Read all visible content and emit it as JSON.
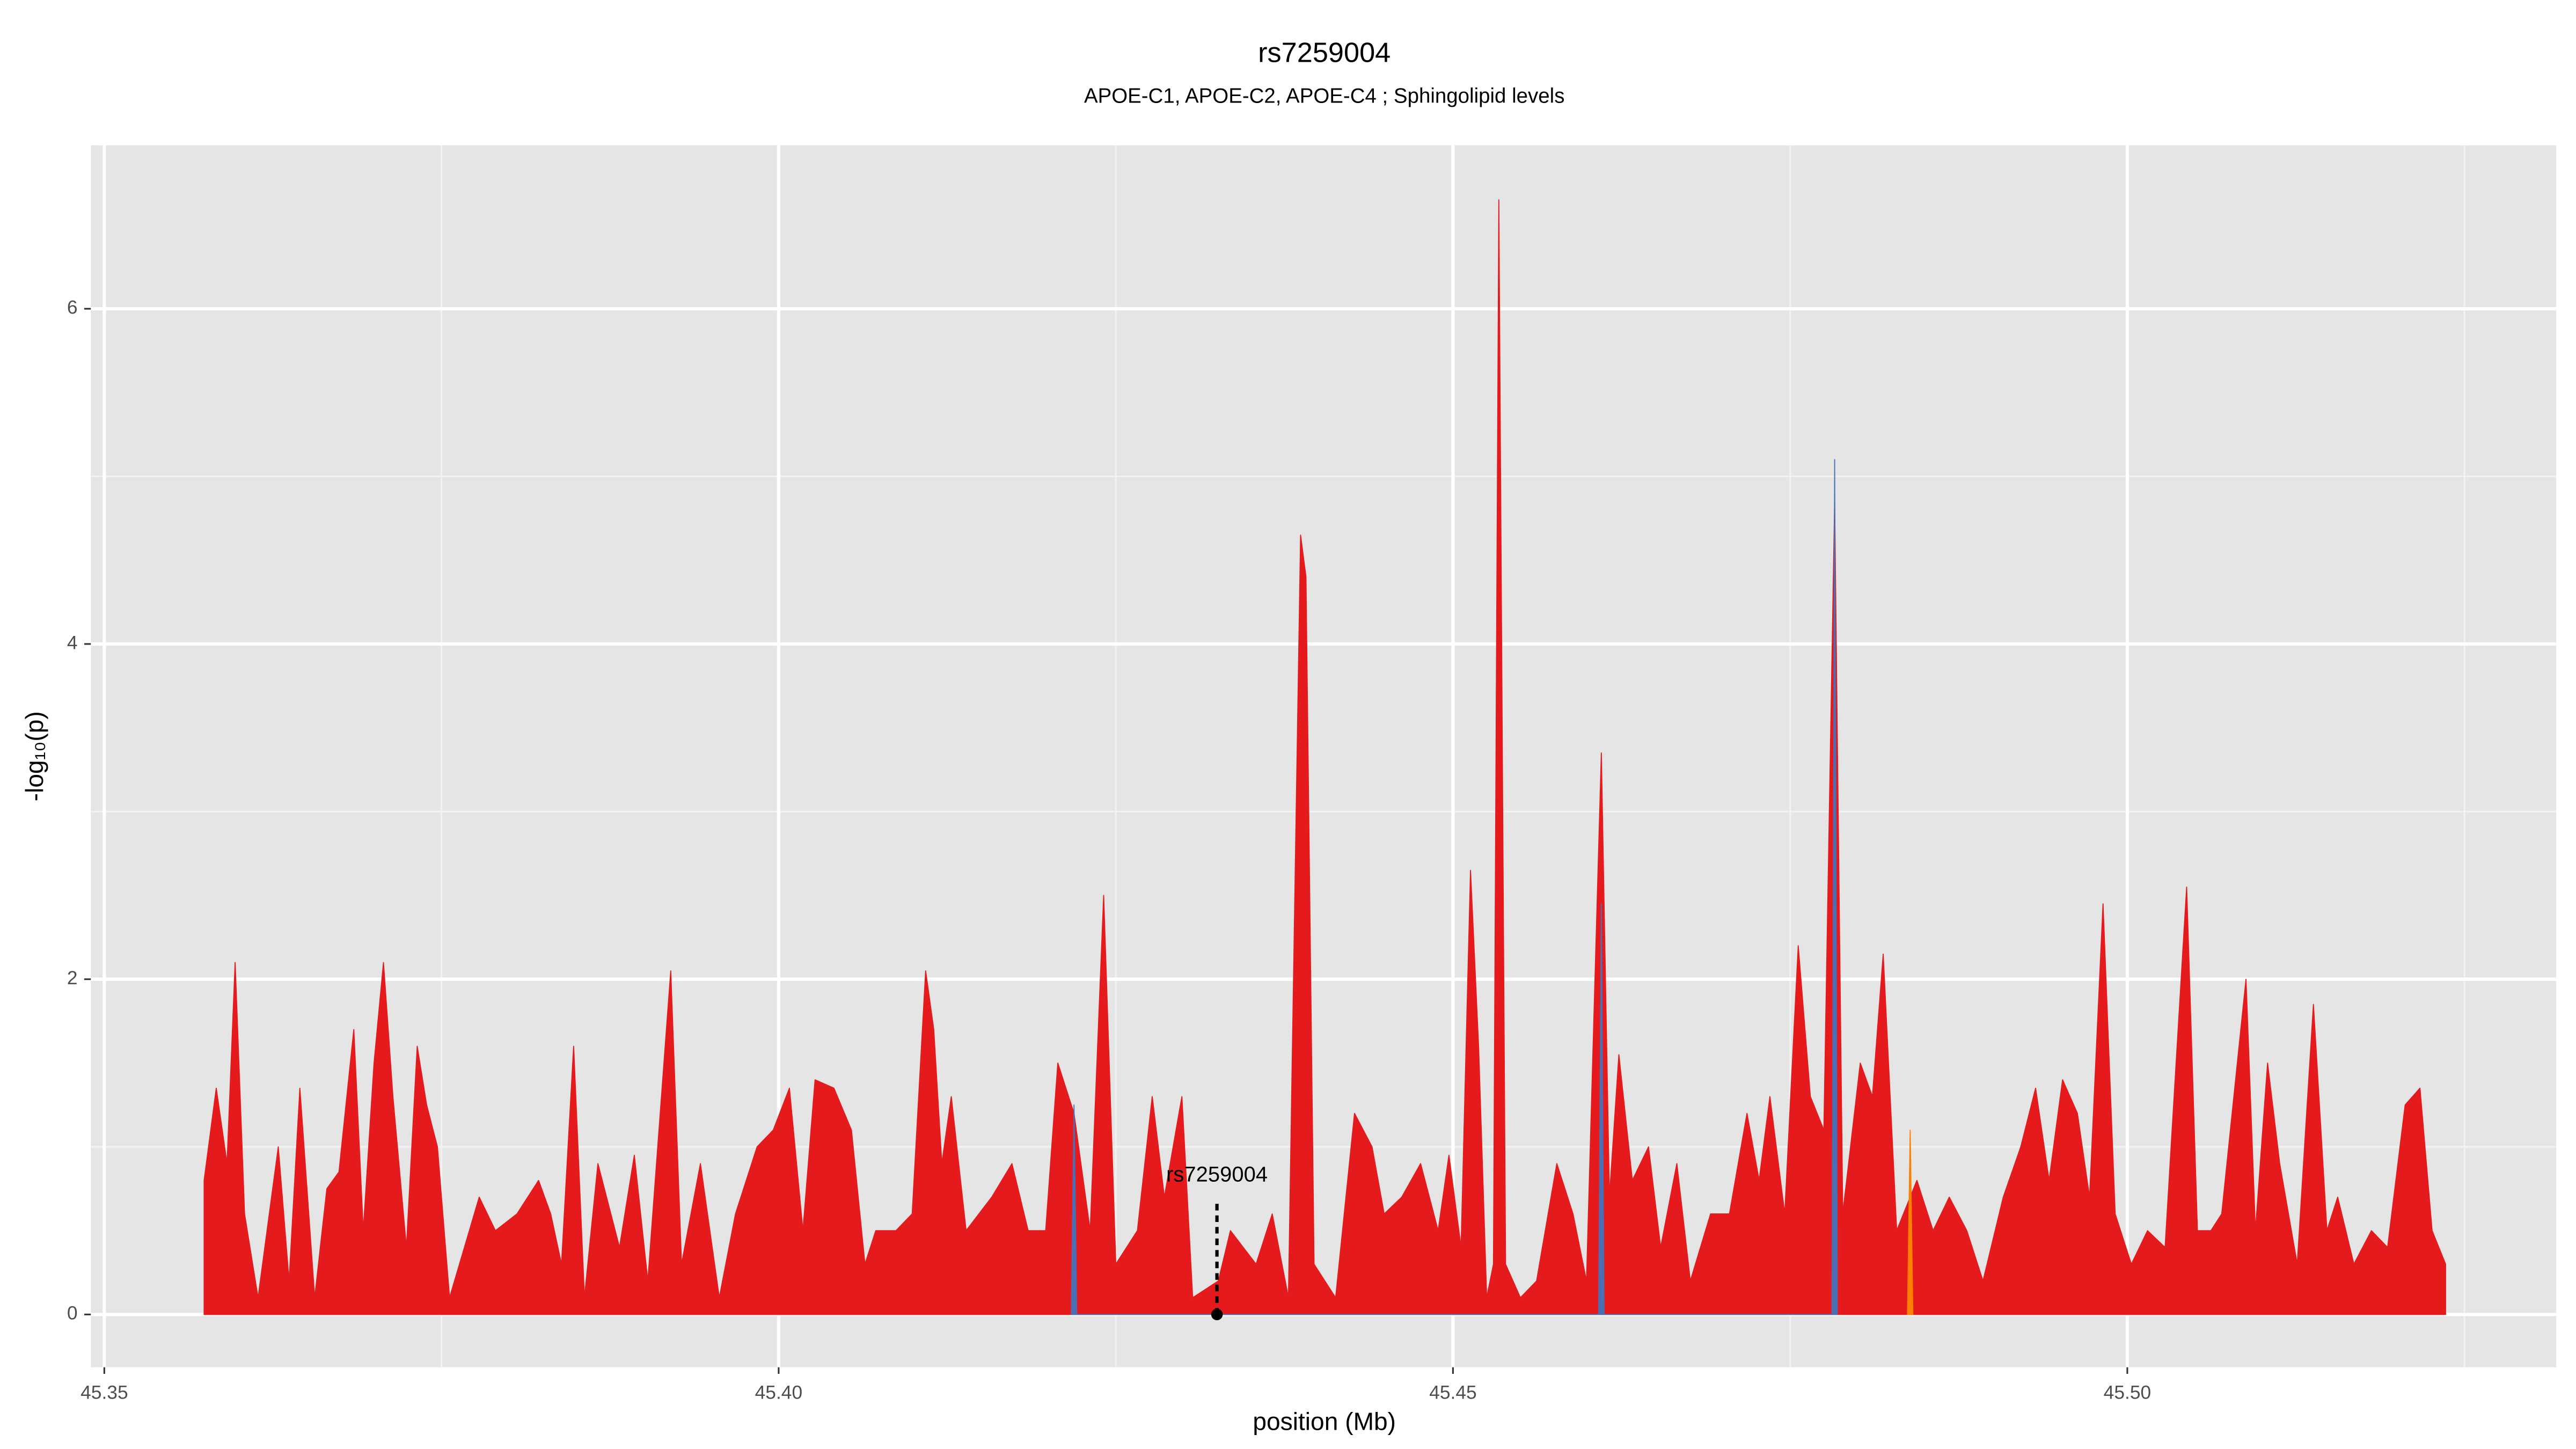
{
  "chart_data": {
    "type": "area",
    "title": "rs7259004",
    "subtitle": "APOE-C1, APOE-C2, APOE-C4 ; Sphingolipid levels",
    "xlabel": "position (Mb)",
    "ylabel": "-log₁₀(p)",
    "xlim": [
      45.349,
      45.5318
    ],
    "ylim": [
      -0.315,
      6.975
    ],
    "xticks": [
      45.35,
      {
        "value": 45.4,
        "label": "45.40"
      },
      45.45,
      {
        "value": 45.5,
        "label": "45.50"
      }
    ],
    "yticks": [
      0,
      2,
      4,
      6
    ],
    "xminor": [
      45.375,
      45.425,
      45.475,
      45.525
    ],
    "yminor": [
      1,
      3,
      5
    ],
    "grid": true,
    "series": [
      {
        "color": "#e41a1c",
        "x": [
          45.3574,
          45.3583,
          45.3591,
          45.3597,
          45.3604,
          45.3614,
          45.3629,
          45.3637,
          45.3645,
          45.3656,
          45.3665,
          45.3674,
          45.3685,
          45.3692,
          45.37,
          45.3707,
          45.3714,
          45.3724,
          45.3732,
          45.3739,
          45.3747,
          45.3756,
          45.3778,
          45.379,
          45.3806,
          45.3822,
          45.3831,
          45.3839,
          45.3848,
          45.3856,
          45.3866,
          45.3882,
          45.3893,
          45.3903,
          45.392,
          45.3928,
          45.3942,
          45.3956,
          45.3968,
          45.3984,
          45.3996,
          45.4008,
          45.4018,
          45.4027,
          45.4041,
          45.4054,
          45.4064,
          45.4072,
          45.4087,
          45.4099,
          45.4109,
          45.4115,
          45.4121,
          45.4128,
          45.4139,
          45.4158,
          45.4173,
          45.4185,
          45.4198,
          45.4207,
          45.4219,
          45.4231,
          45.4241,
          45.425,
          45.4266,
          45.4277,
          45.4286,
          45.4299,
          45.4307,
          45.4326,
          45.4335,
          45.4354,
          45.4366,
          45.4378,
          45.4387,
          45.4391,
          45.4397,
          45.4413,
          45.4427,
          45.444,
          45.4449,
          45.4462,
          45.4476,
          45.4489,
          45.4497,
          45.4506,
          45.4513,
          45.4519,
          45.4525,
          45.453,
          45.4534,
          45.4539,
          45.455,
          45.4562,
          45.4577,
          45.4589,
          45.4599,
          45.461,
          45.4616,
          45.4623,
          45.4633,
          45.4645,
          45.4654,
          45.4666,
          45.4676,
          45.4691,
          45.4705,
          45.4718,
          45.4727,
          45.4735,
          45.4746,
          45.4756,
          45.4765,
          45.4775,
          45.4783,
          45.4789,
          45.4802,
          45.4811,
          45.4819,
          45.4829,
          45.4844,
          45.4856,
          45.4868,
          45.4881,
          45.4893,
          45.4908,
          45.4921,
          45.4932,
          45.4942,
          45.4952,
          45.4963,
          45.4972,
          45.4982,
          45.4991,
          45.5003,
          45.5015,
          45.5028,
          45.5044,
          45.5052,
          45.5062,
          45.507,
          45.5088,
          45.5095,
          45.5104,
          45.5113,
          45.5126,
          45.5138,
          45.5148,
          45.5156,
          45.5168,
          45.5181,
          45.5193,
          45.5206,
          45.5217,
          45.5226,
          45.5236
        ],
        "values": [
          0.8,
          1.35,
          0.9,
          2.1,
          0.6,
          0.1,
          1.0,
          0.2,
          1.35,
          0.1,
          0.75,
          0.85,
          1.7,
          0.5,
          1.5,
          2.1,
          1.3,
          0.4,
          1.6,
          1.25,
          1.0,
          0.1,
          0.7,
          0.5,
          0.6,
          0.8,
          0.6,
          0.3,
          1.6,
          0.1,
          0.9,
          0.4,
          0.95,
          0.2,
          2.05,
          0.3,
          0.9,
          0.1,
          0.6,
          1.0,
          1.1,
          1.35,
          0.5,
          1.4,
          1.35,
          1.1,
          0.3,
          0.5,
          0.5,
          0.6,
          2.05,
          1.7,
          0.9,
          1.3,
          0.5,
          0.7,
          0.9,
          0.5,
          0.5,
          1.5,
          1.2,
          0.5,
          2.5,
          0.3,
          0.5,
          1.3,
          0.7,
          1.3,
          0.1,
          0.2,
          0.5,
          0.3,
          0.6,
          0.1,
          4.65,
          4.4,
          0.3,
          0.1,
          1.2,
          1.0,
          0.6,
          0.7,
          0.9,
          0.5,
          0.95,
          0.4,
          2.65,
          1.6,
          0.1,
          0.3,
          6.65,
          0.3,
          0.1,
          0.2,
          0.9,
          0.6,
          0.2,
          3.35,
          0.7,
          1.55,
          0.8,
          1.0,
          0.4,
          0.9,
          0.2,
          0.6,
          0.6,
          1.2,
          0.8,
          1.3,
          0.6,
          2.2,
          1.3,
          1.1,
          4.85,
          0.6,
          1.5,
          1.3,
          2.15,
          0.5,
          0.8,
          0.5,
          0.7,
          0.5,
          0.2,
          0.7,
          1.0,
          1.35,
          0.8,
          1.4,
          1.2,
          0.7,
          2.45,
          0.6,
          0.3,
          0.5,
          0.4,
          2.55,
          0.5,
          0.5,
          0.6,
          2.0,
          0.5,
          1.5,
          0.9,
          0.3,
          1.85,
          0.5,
          0.7,
          0.3,
          0.5,
          0.4,
          1.25,
          1.35,
          0.5,
          0.3
        ]
      },
      {
        "color": "#4a6fb5",
        "x": [
          45.4217,
          45.4219,
          45.4221,
          45.4608,
          45.461,
          45.4612,
          45.4781,
          45.4783,
          45.4785
        ],
        "values": [
          0,
          1.25,
          0,
          0,
          2.45,
          0,
          0,
          5.1,
          0
        ]
      },
      {
        "color": "#ff7f00",
        "x": [
          45.4837,
          45.4839,
          45.4841
        ],
        "values": [
          0,
          1.1,
          0
        ]
      }
    ],
    "annotation": {
      "text": "rs7259004",
      "x": 45.4325,
      "y": 0
    }
  }
}
